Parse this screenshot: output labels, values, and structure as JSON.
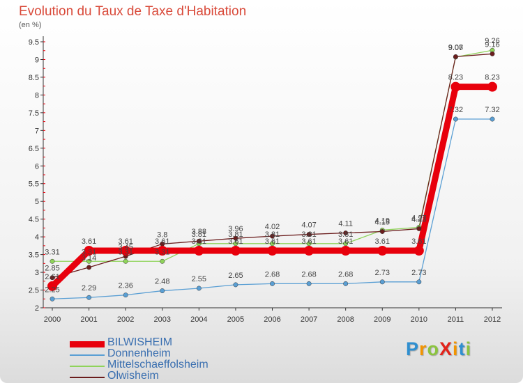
{
  "header": {
    "title": "Evolution du Taux de Taxe d'Habitation",
    "subtitle": "(en %)"
  },
  "brand": {
    "letters": [
      {
        "char": "P",
        "color": "#2f8fd0"
      },
      {
        "char": "r",
        "color": "#f29400"
      },
      {
        "char": "o",
        "color": "#8bc43f"
      },
      {
        "char": "X",
        "color": "#e2231a"
      },
      {
        "char": "i",
        "color": "#f29400"
      },
      {
        "char": "t",
        "color": "#2f8fd0"
      },
      {
        "char": "i",
        "color": "#8bc43f"
      }
    ]
  },
  "chart_data": {
    "type": "line",
    "title": "Evolution du Taux de Taxe d'Habitation",
    "subtitle": "(en %)",
    "xlabel": "",
    "ylabel": "",
    "x": [
      "2000",
      "2001",
      "2002",
      "2003",
      "2004",
      "2005",
      "2006",
      "2007",
      "2008",
      "2009",
      "2010",
      "2011",
      "2012"
    ],
    "ylim": [
      2,
      9.5
    ],
    "yticks": [
      "2",
      "2.5",
      "3",
      "3.5",
      "4",
      "4.5",
      "5",
      "5.5",
      "6",
      "6.5",
      "7",
      "7.5",
      "8",
      "8.5",
      "9",
      "9.5"
    ],
    "grid": false,
    "legend_position": "bottom-left",
    "series": [
      {
        "name": "Donnenheim",
        "color": "#5a9fd4",
        "values": [
          2.25,
          2.29,
          2.36,
          2.48,
          2.55,
          2.65,
          2.68,
          2.68,
          2.68,
          2.73,
          2.73,
          7.32,
          7.32
        ],
        "labels": [
          "2.25",
          "2.29",
          "2.36",
          "2.48",
          "2.55",
          "2.65",
          "2.68",
          "2.68",
          "2.68",
          "2.73",
          "2.73",
          "7.32",
          "7.32"
        ]
      },
      {
        "name": "Mittelschaeffolsheim",
        "color": "#8fd35a",
        "values": [
          3.31,
          3.31,
          3.31,
          3.31,
          3.81,
          3.81,
          3.81,
          3.81,
          3.81,
          4.19,
          4.27,
          9.07,
          9.26
        ],
        "labels": [
          "3.31",
          "3.31",
          "3.31",
          "3.31",
          "3.81",
          "3.81",
          "3.81",
          "3.81",
          "3.81",
          "4.19",
          "4.27",
          "9.07",
          "9.26"
        ]
      },
      {
        "name": "Olwisheim",
        "color": "#6b1d1d",
        "values": [
          2.85,
          3.14,
          3.45,
          3.8,
          3.88,
          3.96,
          4.02,
          4.07,
          4.11,
          4.15,
          4.23,
          9.08,
          9.16
        ],
        "labels": [
          "2.85",
          "3.14",
          "3.45",
          "3.8",
          "3.88",
          "3.96",
          "4.02",
          "4.07",
          "4.11",
          "4.15",
          "4.23",
          "9.08",
          "9.16"
        ]
      },
      {
        "name": "BILWISHEIM",
        "color": "#e8000c",
        "values": [
          2.61,
          3.61,
          3.61,
          3.61,
          3.61,
          3.61,
          3.61,
          3.61,
          3.61,
          3.61,
          3.61,
          8.23,
          8.23
        ],
        "labels": [
          "2.61",
          "3.61",
          "3.61",
          "3.61",
          "3.61",
          "3.61",
          "3.61",
          "3.61",
          "3.61",
          "3.61",
          "3.61",
          "8.23",
          "8.23"
        ]
      }
    ],
    "legend_order": [
      "BILWISHEIM",
      "Donnenheim",
      "Mittelschaeffolsheim",
      "Olwisheim"
    ]
  }
}
